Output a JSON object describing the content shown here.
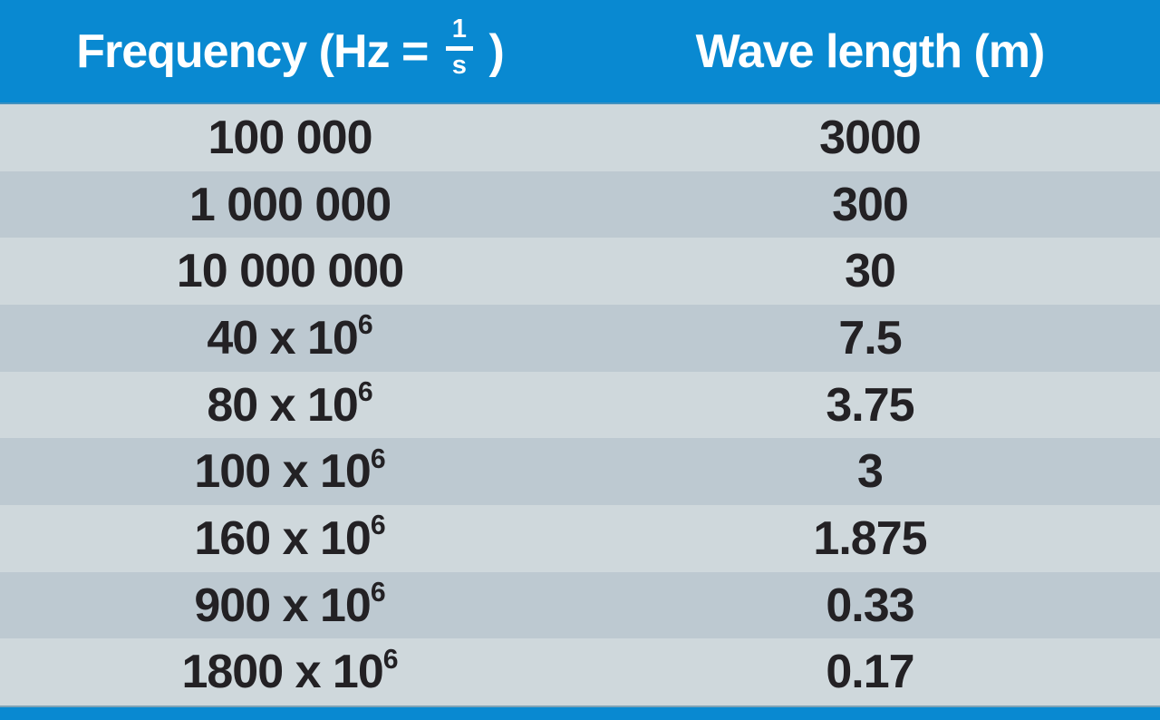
{
  "header": {
    "frequency": {
      "prefix": "Frequency (Hz = ",
      "frac_num": "1",
      "frac_den": "s",
      "suffix": " )"
    },
    "wavelength_label": "Wave length (m)"
  },
  "rows": [
    {
      "freq_base": "100 000",
      "freq_exp": "",
      "wavelength": "3000"
    },
    {
      "freq_base": "1 000 000",
      "freq_exp": "",
      "wavelength": "300"
    },
    {
      "freq_base": "10 000 000",
      "freq_exp": "",
      "wavelength": "30"
    },
    {
      "freq_base": "40 x 10",
      "freq_exp": "6",
      "wavelength": "7.5"
    },
    {
      "freq_base": "80 x 10",
      "freq_exp": "6",
      "wavelength": "3.75"
    },
    {
      "freq_base": "100 x 10",
      "freq_exp": "6",
      "wavelength": "3"
    },
    {
      "freq_base": "160 x 10",
      "freq_exp": "6",
      "wavelength": "1.875"
    },
    {
      "freq_base": "900 x 10",
      "freq_exp": "6",
      "wavelength": "0.33"
    },
    {
      "freq_base": "1800 x 10",
      "freq_exp": "6",
      "wavelength": "0.17"
    }
  ],
  "colors": {
    "header_blue": "#0989d1",
    "row_light": "#cfd8dc",
    "row_dark": "#bdc9d1",
    "text_dark": "#232124",
    "header_text": "#ffffff",
    "bottom_bar_blue": "#0989d1"
  },
  "chart_data": {
    "type": "table",
    "title": "Frequency vs wave length",
    "columns": [
      "Frequency (Hz = 1/s)",
      "Wave length (m)"
    ],
    "rows": [
      [
        "100 000",
        "3000"
      ],
      [
        "1 000 000",
        "300"
      ],
      [
        "10 000 000",
        "30"
      ],
      [
        "40 x 10^6",
        "7.5"
      ],
      [
        "80 x 10^6",
        "3.75"
      ],
      [
        "100 x 10^6",
        "3"
      ],
      [
        "160 x 10^6",
        "1.875"
      ],
      [
        "900 x 10^6",
        "0.33"
      ],
      [
        "1800 x 10^6",
        "0.17"
      ]
    ]
  }
}
